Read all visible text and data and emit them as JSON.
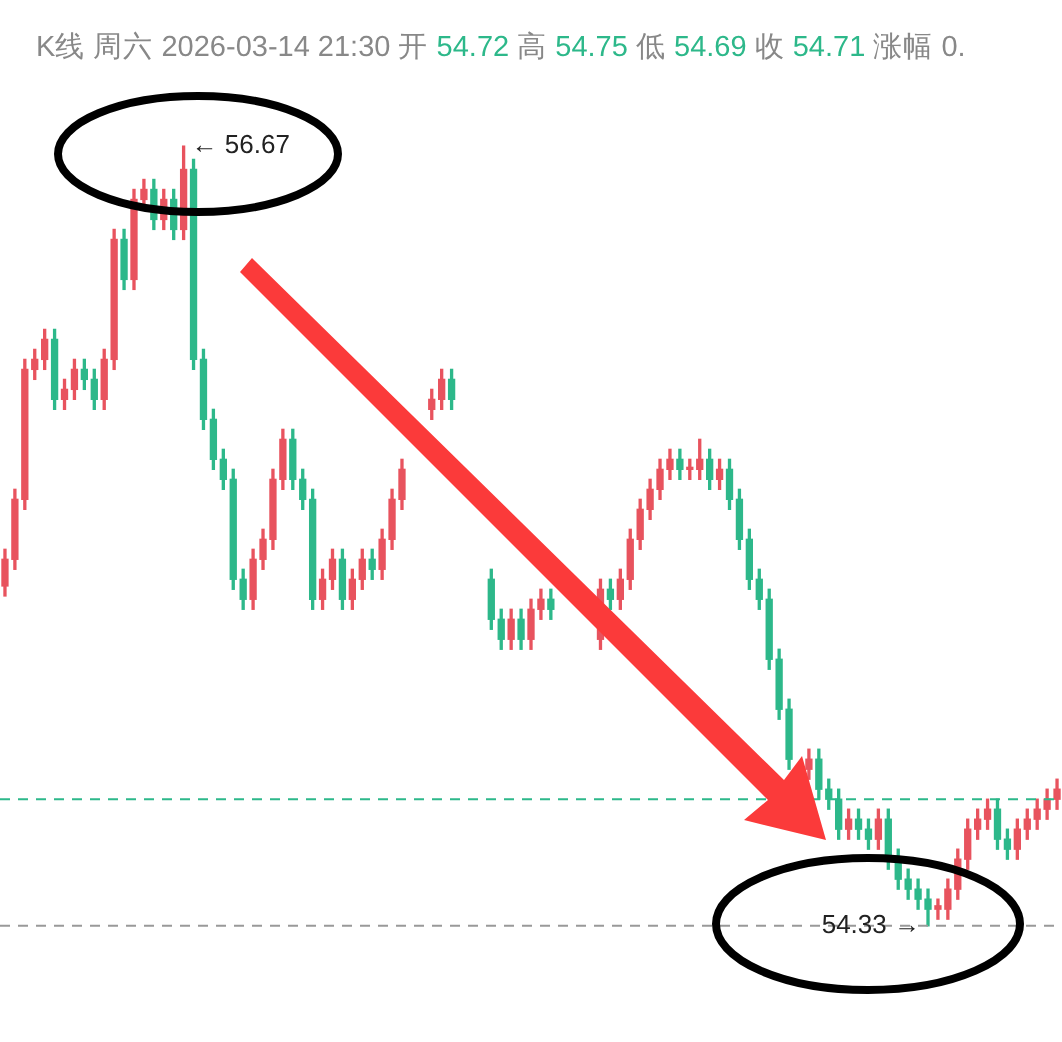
{
  "chart_data": {
    "type": "candlestick",
    "subtitle": "K线 周六 2026-03-14 21:30 开 54.72 高 54.75 低 54.69 收 54.71 涨幅 0.",
    "categories": [
      null,
      null,
      null,
      null,
      null,
      null,
      null,
      null,
      null,
      null,
      null,
      null,
      null,
      null,
      null,
      null,
      null,
      null,
      null,
      null,
      null,
      null,
      null,
      null,
      null,
      null,
      null,
      null,
      null,
      null,
      null,
      null,
      null,
      null,
      null,
      null,
      null,
      null,
      null,
      null,
      null,
      null,
      null,
      null,
      null,
      null,
      null,
      null,
      null,
      null,
      null,
      null,
      null,
      null,
      null,
      null,
      null,
      null,
      null,
      null,
      null,
      null,
      null,
      null,
      null,
      null,
      null,
      null,
      null,
      null,
      null,
      null,
      null,
      null,
      null,
      null,
      null,
      null,
      null,
      null,
      null,
      null,
      null,
      null,
      null,
      null,
      null,
      null,
      null,
      null,
      null,
      null,
      null,
      null,
      null,
      null,
      null,
      null,
      null,
      null,
      null,
      null,
      null,
      null,
      null,
      null,
      null
    ],
    "ohlc": [
      [
        55.35,
        55.46,
        55.32,
        55.43
      ],
      [
        55.43,
        55.64,
        55.4,
        55.61
      ],
      [
        55.61,
        56.03,
        55.58,
        56.0
      ],
      [
        56.0,
        56.06,
        55.97,
        56.03
      ],
      [
        56.03,
        56.12,
        56.0,
        56.09
      ],
      [
        56.09,
        56.12,
        55.88,
        55.91
      ],
      [
        55.91,
        55.97,
        55.88,
        55.94
      ],
      [
        55.94,
        56.03,
        55.91,
        56.0
      ],
      [
        56.0,
        56.03,
        55.94,
        55.97
      ],
      [
        55.97,
        56.0,
        55.88,
        55.91
      ],
      [
        55.91,
        56.06,
        55.88,
        56.03
      ],
      [
        56.03,
        56.42,
        56.0,
        56.39
      ],
      [
        56.39,
        56.42,
        56.24,
        56.27
      ],
      [
        56.27,
        56.54,
        56.24,
        56.51
      ],
      [
        56.51,
        56.57,
        56.48,
        56.54
      ],
      [
        56.54,
        56.57,
        56.42,
        56.45
      ],
      [
        56.45,
        56.54,
        56.42,
        56.51
      ],
      [
        56.51,
        56.54,
        56.39,
        56.42
      ],
      [
        56.42,
        56.67,
        56.39,
        56.6
      ],
      [
        56.6,
        56.63,
        56.0,
        56.03
      ],
      [
        56.03,
        56.06,
        55.82,
        55.85
      ],
      [
        55.85,
        55.88,
        55.7,
        55.73
      ],
      [
        55.73,
        55.76,
        55.64,
        55.67
      ],
      [
        55.67,
        55.7,
        55.34,
        55.37
      ],
      [
        55.37,
        55.4,
        55.28,
        55.31
      ],
      [
        55.31,
        55.46,
        55.28,
        55.43
      ],
      [
        55.43,
        55.52,
        55.4,
        55.49
      ],
      [
        55.49,
        55.7,
        55.46,
        55.67
      ],
      [
        55.67,
        55.82,
        55.64,
        55.79
      ],
      [
        55.79,
        55.82,
        55.64,
        55.67
      ],
      [
        55.67,
        55.7,
        55.58,
        55.61
      ],
      [
        55.61,
        55.64,
        55.28,
        55.31
      ],
      [
        55.31,
        55.4,
        55.28,
        55.37
      ],
      [
        55.37,
        55.46,
        55.34,
        55.43
      ],
      [
        55.43,
        55.46,
        55.28,
        55.31
      ],
      [
        55.31,
        55.4,
        55.28,
        55.37
      ],
      [
        55.37,
        55.46,
        55.34,
        55.43
      ],
      [
        55.43,
        55.46,
        55.37,
        55.4
      ],
      [
        55.4,
        55.52,
        55.37,
        55.49
      ],
      [
        55.49,
        55.64,
        55.46,
        55.61
      ],
      [
        55.61,
        55.73,
        55.58,
        55.7
      ],
      null,
      null,
      [
        55.88,
        55.94,
        55.85,
        55.91
      ],
      [
        55.91,
        56.0,
        55.88,
        55.97
      ],
      [
        55.97,
        56.0,
        55.88,
        55.91
      ],
      null,
      null,
      null,
      [
        55.37,
        55.4,
        55.22,
        55.25
      ],
      [
        55.25,
        55.28,
        55.16,
        55.19
      ],
      [
        55.19,
        55.28,
        55.16,
        55.25
      ],
      [
        55.25,
        55.28,
        55.16,
        55.19
      ],
      [
        55.19,
        55.31,
        55.16,
        55.28
      ],
      [
        55.28,
        55.34,
        55.25,
        55.31
      ],
      [
        55.31,
        55.34,
        55.25,
        55.28
      ],
      null,
      null,
      null,
      null,
      [
        55.19,
        55.37,
        55.16,
        55.34
      ],
      [
        55.34,
        55.37,
        55.28,
        55.31
      ],
      [
        55.31,
        55.4,
        55.28,
        55.37
      ],
      [
        55.37,
        55.52,
        55.34,
        55.49
      ],
      [
        55.49,
        55.61,
        55.46,
        55.58
      ],
      [
        55.58,
        55.67,
        55.55,
        55.64
      ],
      [
        55.64,
        55.73,
        55.61,
        55.7
      ],
      [
        55.7,
        55.76,
        55.67,
        55.73
      ],
      [
        55.73,
        55.76,
        55.67,
        55.7
      ],
      [
        55.7,
        55.73,
        55.67,
        55.7
      ],
      [
        55.7,
        55.79,
        55.67,
        55.73
      ],
      [
        55.73,
        55.76,
        55.64,
        55.67
      ],
      [
        55.67,
        55.73,
        55.64,
        55.7
      ],
      [
        55.7,
        55.73,
        55.58,
        55.61
      ],
      [
        55.61,
        55.64,
        55.46,
        55.49
      ],
      [
        55.49,
        55.52,
        55.34,
        55.37
      ],
      [
        55.37,
        55.4,
        55.28,
        55.31
      ],
      [
        55.31,
        55.34,
        55.1,
        55.13
      ],
      [
        55.13,
        55.16,
        54.95,
        54.98
      ],
      [
        54.98,
        55.01,
        54.8,
        54.83
      ],
      null,
      [
        54.8,
        54.86,
        54.77,
        54.83
      ],
      [
        54.83,
        54.86,
        54.71,
        54.74
      ],
      [
        54.74,
        54.77,
        54.68,
        54.71
      ],
      [
        54.71,
        54.74,
        54.59,
        54.62
      ],
      [
        54.62,
        54.68,
        54.59,
        54.65
      ],
      [
        54.65,
        54.68,
        54.59,
        54.62
      ],
      [
        54.62,
        54.65,
        54.56,
        54.59
      ],
      [
        54.59,
        54.68,
        54.56,
        54.65
      ],
      [
        54.65,
        54.68,
        54.5,
        54.53
      ],
      [
        54.53,
        54.56,
        54.44,
        54.47
      ],
      [
        54.47,
        54.5,
        54.41,
        54.44
      ],
      [
        54.44,
        54.47,
        54.38,
        54.41
      ],
      [
        54.41,
        54.44,
        54.33,
        54.38
      ],
      [
        54.38,
        54.41,
        54.35,
        54.39
      ],
      [
        54.38,
        54.47,
        54.35,
        54.44
      ],
      [
        54.44,
        54.56,
        54.41,
        54.53
      ],
      [
        54.53,
        54.65,
        54.5,
        54.62
      ],
      [
        54.62,
        54.68,
        54.59,
        54.65
      ],
      [
        54.65,
        54.71,
        54.62,
        54.68
      ],
      [
        54.68,
        54.71,
        54.56,
        54.59
      ],
      [
        54.59,
        54.62,
        54.53,
        54.56
      ],
      [
        54.56,
        54.65,
        54.53,
        54.62
      ],
      [
        54.62,
        54.68,
        54.59,
        54.65
      ],
      [
        54.65,
        54.71,
        54.62,
        54.68
      ],
      [
        54.68,
        54.74,
        54.65,
        54.71
      ],
      [
        54.71,
        54.77,
        54.68,
        54.74
      ]
    ],
    "ref_lines": [
      {
        "axis": "y",
        "value": 54.71,
        "color": "#2db88a",
        "line_style": "dashed"
      },
      {
        "axis": "y",
        "value": 54.33,
        "color": "#999999",
        "line_style": "dashed"
      }
    ],
    "annotations": [
      "← 56.67",
      "54.33 →"
    ],
    "legend": false
  }
}
